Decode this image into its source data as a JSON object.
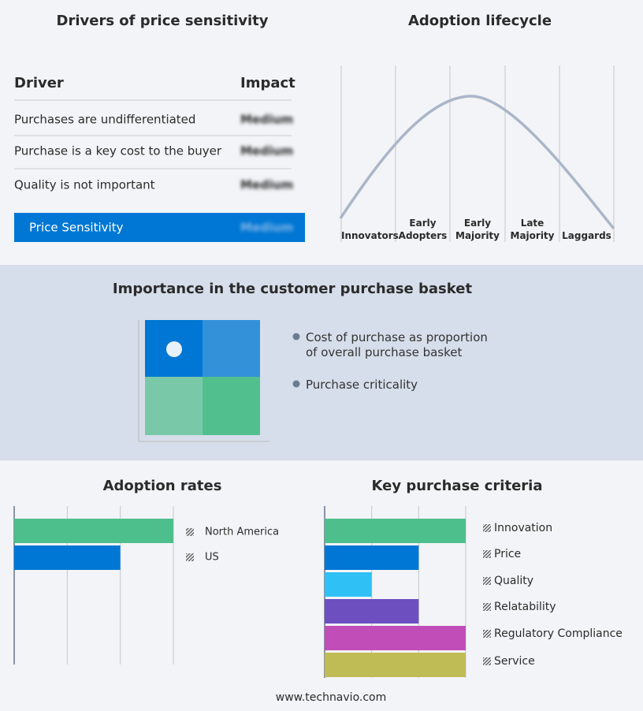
{
  "price_sensitivity": {
    "title": "Drivers of price sensitivity",
    "header": [
      "Driver",
      "Impact"
    ],
    "rows": [
      [
        "Purchases are undifferentiated",
        "Medium"
      ],
      [
        "Purchase is a key cost to the buyer",
        "Medium"
      ],
      [
        "Quality is not important",
        "Medium"
      ]
    ],
    "summary": [
      "Price Sensitivity",
      "Medium"
    ]
  },
  "adoption_lifecycle": {
    "title": "Adoption lifecycle",
    "stages": [
      "Innovators",
      "Early Adopters",
      "Early Majority",
      "Late Majority",
      "Laggards"
    ]
  },
  "purchase_basket": {
    "title": "Importance in the customer purchase basket",
    "legend": [
      "Cost of purchase as proportion of overall purchase basket",
      "Purchase criticality"
    ]
  },
  "chart_data": [
    {
      "type": "bar",
      "title": "Adoption rates",
      "categories": [
        "North America",
        "US"
      ],
      "values": [
        3,
        2
      ],
      "colors": [
        "#4dbf8c",
        "#0077d4"
      ],
      "xlim": [
        0,
        3
      ],
      "xticks": [
        0,
        1,
        2,
        3
      ],
      "grid": true
    },
    {
      "type": "bar",
      "title": "Key purchase criteria",
      "categories": [
        "Innovation",
        "Price",
        "Quality",
        "Relatability",
        "Regulatory Compliance",
        "Service"
      ],
      "values": [
        3,
        2,
        1,
        2,
        3,
        3
      ],
      "colors": [
        "#4dbf8c",
        "#0077d4",
        "#2fc0f5",
        "#6d4fc0",
        "#c04db8",
        "#bfbb55"
      ],
      "xlim": [
        0,
        3
      ],
      "xticks": [
        0,
        1,
        2,
        3
      ],
      "grid": true
    }
  ],
  "footer": "www.technavio.com"
}
